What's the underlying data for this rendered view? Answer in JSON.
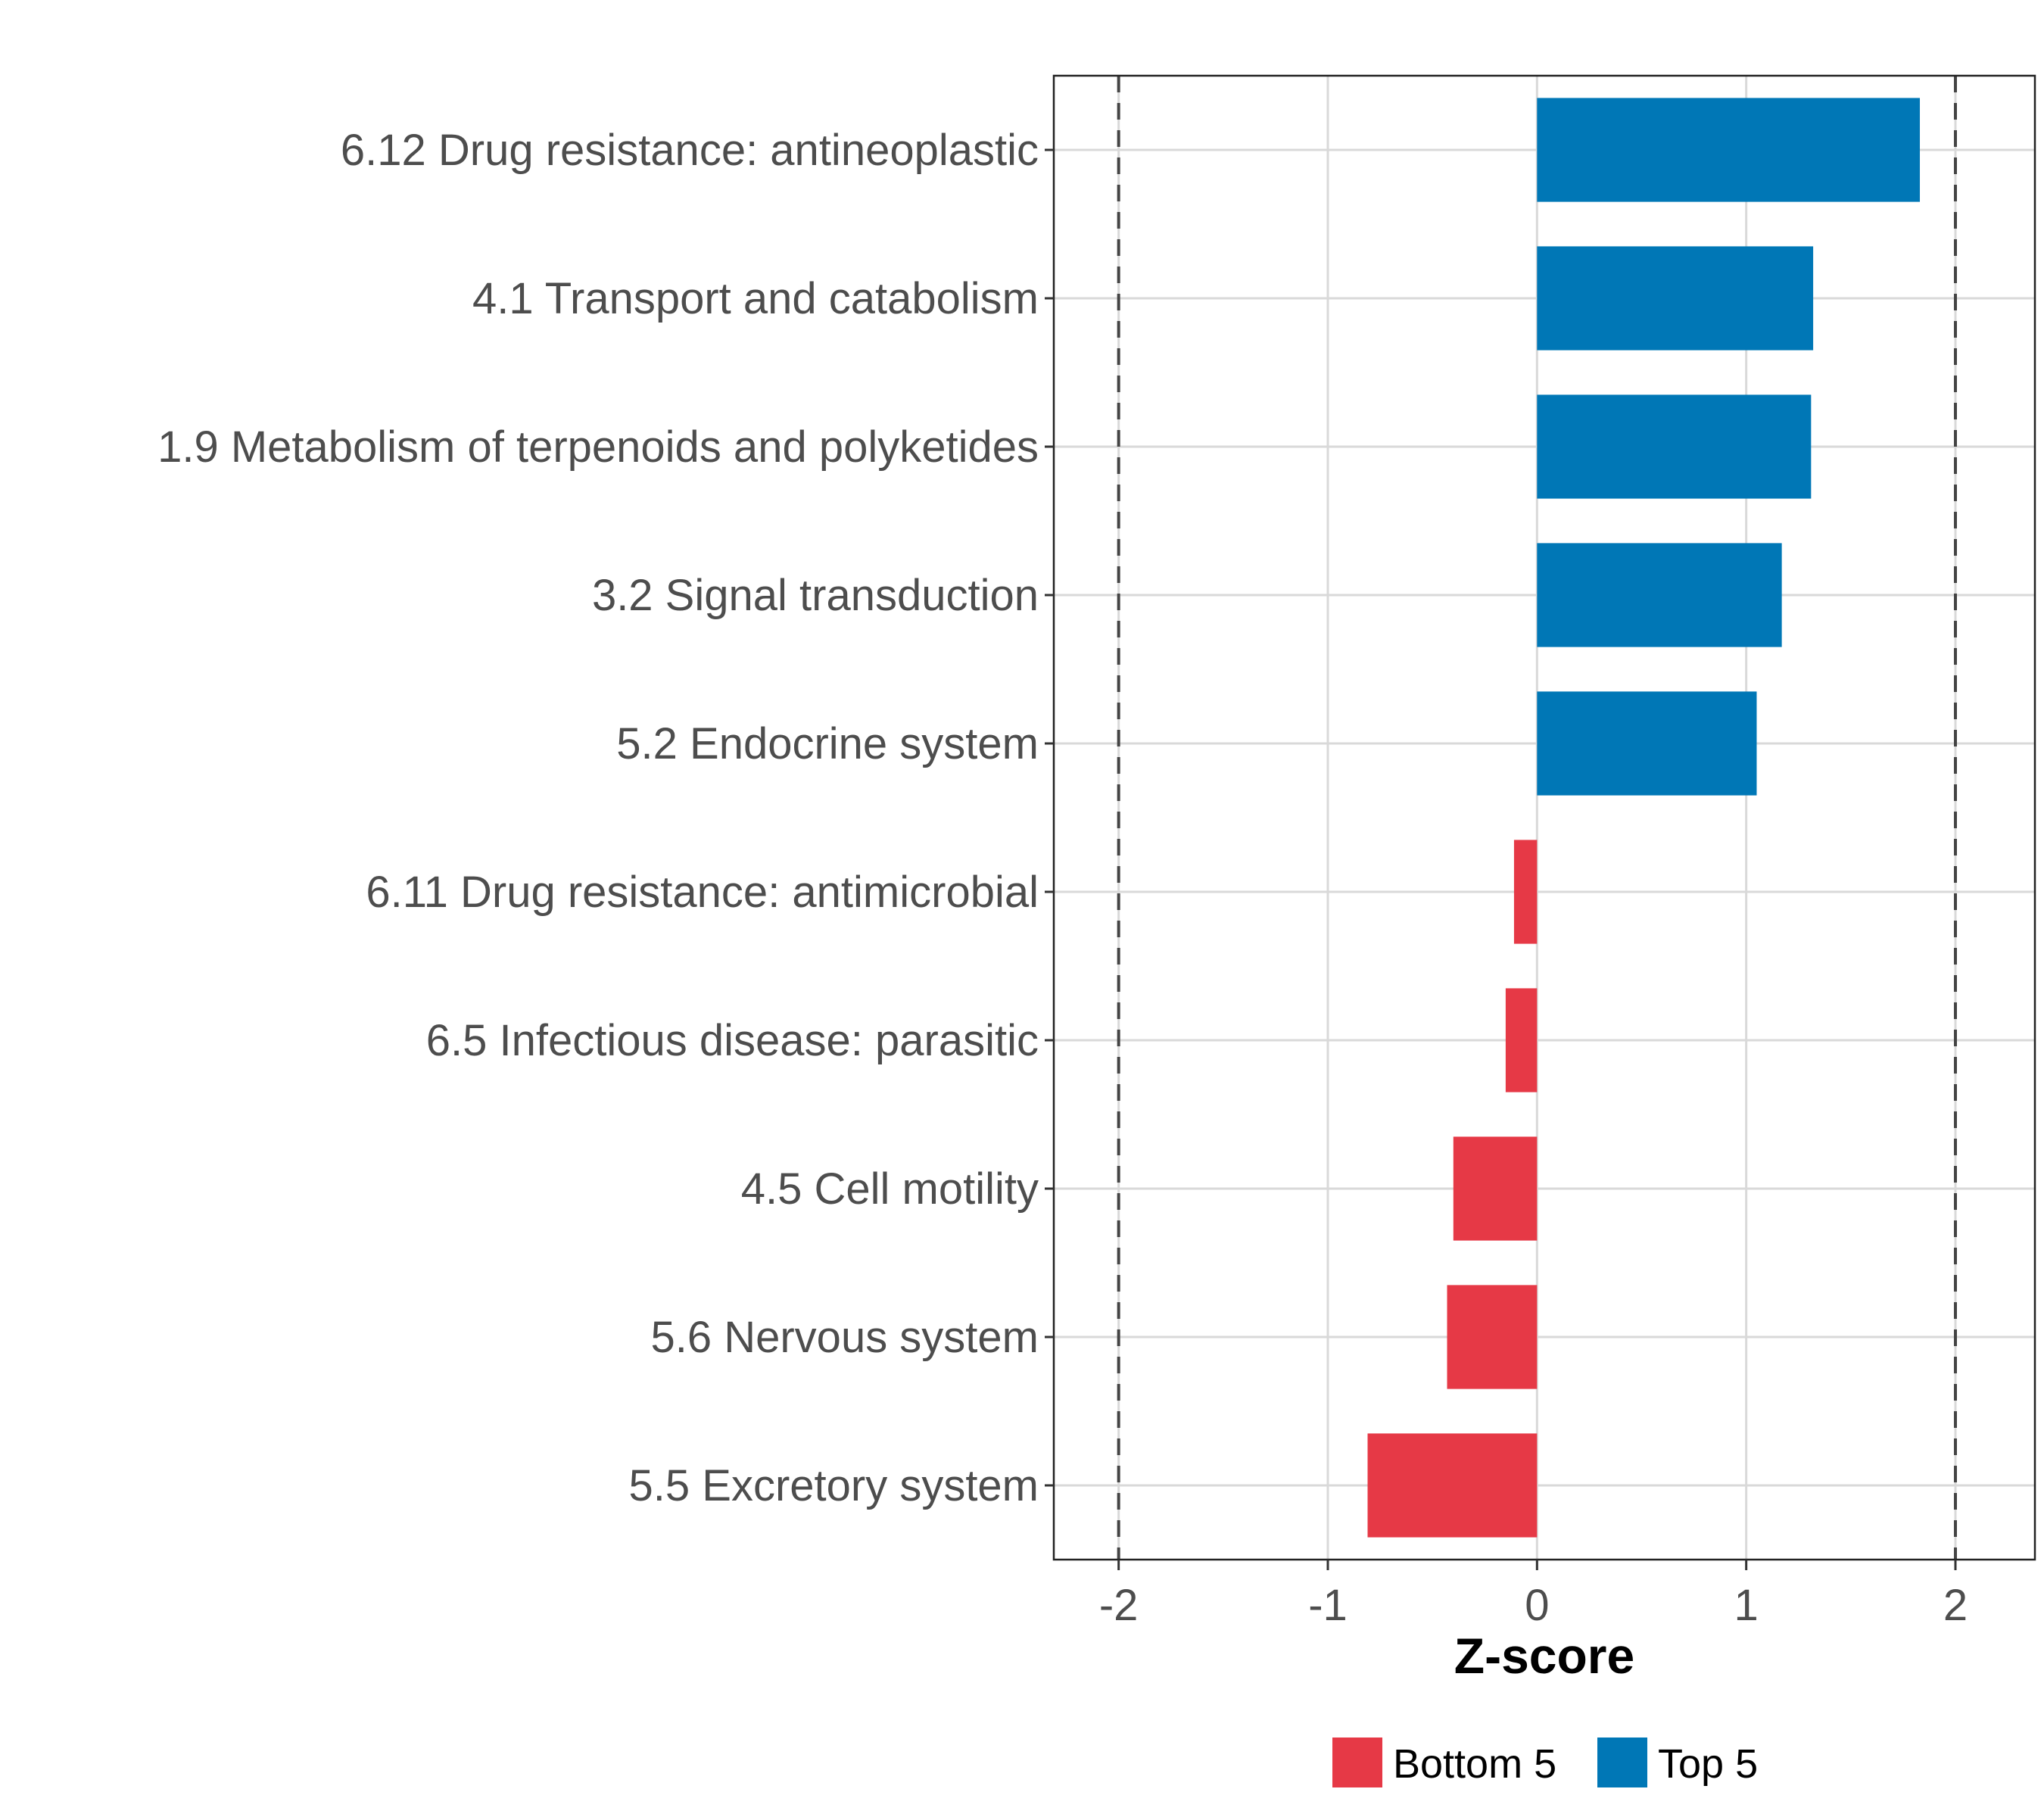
{
  "chart_data": {
    "type": "bar",
    "orientation": "horizontal",
    "categories": [
      "6.12 Drug resistance: antineoplastic",
      "4.1 Transport and catabolism",
      "1.9 Metabolism of terpenoids and polyketides",
      "3.2 Signal transduction",
      "5.2 Endocrine system",
      "6.11 Drug resistance: antimicrobial",
      "6.5 Infectious disease: parasitic",
      "4.5 Cell motility",
      "5.6 Nervous system",
      "5.5 Excretory system"
    ],
    "values": [
      1.83,
      1.32,
      1.31,
      1.17,
      1.05,
      -0.11,
      -0.15,
      -0.4,
      -0.43,
      -0.81
    ],
    "groups": [
      "Top 5",
      "Top 5",
      "Top 5",
      "Top 5",
      "Top 5",
      "Bottom 5",
      "Bottom 5",
      "Bottom 5",
      "Bottom 5",
      "Bottom 5"
    ],
    "xlabel": "Z-score",
    "ylabel": "",
    "xlim": [
      -2.31,
      2.38
    ],
    "xticks": [
      "-2",
      "-1",
      "0",
      "1",
      "2"
    ],
    "xtick_values": [
      -2,
      -1,
      0,
      1,
      2
    ],
    "reference_lines": [
      -2,
      2
    ],
    "grid": true,
    "legend": {
      "placement": "bottom",
      "entries": [
        {
          "label": "Bottom 5",
          "color": "#E63946"
        },
        {
          "label": "Top 5",
          "color": "#0077B6"
        }
      ]
    },
    "colors": {
      "Top 5": "#0077B6",
      "Bottom 5": "#E63946"
    }
  }
}
